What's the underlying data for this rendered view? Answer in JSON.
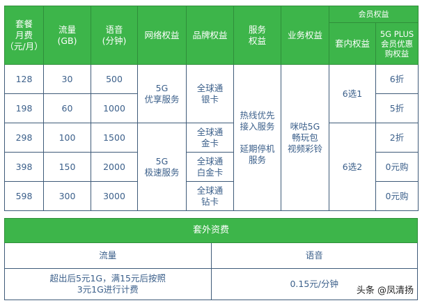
{
  "main": {
    "headers": {
      "fee": "套餐\n月费\n（元/月）",
      "data": "流量\n(GB)",
      "voice": "语音\n(分钟)",
      "network": "网络权益",
      "brand": "品牌权益",
      "service": "服务\n权益",
      "business": "业务权益",
      "member_group": "会员权益",
      "inner": "套内权益",
      "plus": "5G PLUS\n会员优惠\n购权益"
    },
    "rows": [
      {
        "fee": "128",
        "data": "30",
        "voice": "500",
        "plus": "6折"
      },
      {
        "fee": "198",
        "data": "60",
        "voice": "1000",
        "plus": "5折"
      },
      {
        "fee": "298",
        "data": "100",
        "voice": "1500",
        "plus": "2折"
      },
      {
        "fee": "398",
        "data": "150",
        "voice": "2000",
        "plus": "0元购"
      },
      {
        "fee": "598",
        "data": "300",
        "voice": "3000",
        "plus": "0元购"
      }
    ],
    "network": [
      "5G\n优享服务",
      "5G\n极速服务"
    ],
    "brand": [
      "全球通\n银卡",
      "全球通\n金卡",
      "全球通\n白金卡",
      "全球通\n钻卡"
    ],
    "service": "热线优先\n接入服务\n\n延期停机\n服务",
    "business": "咪咕5G\n畅玩包\n视频彩铃",
    "inner": [
      "6选1",
      "6选2"
    ]
  },
  "extra": {
    "title": "套外资费",
    "data_label": "流量",
    "voice_label": "语音",
    "data_value": "超出后5元1G，满15元后按照\n3元1G进行计费",
    "voice_value": "0.15元/分钟"
  },
  "watermark": "头条 @凤清扬",
  "colors": {
    "green": "#3db54a",
    "text": "#3b5f8a"
  }
}
